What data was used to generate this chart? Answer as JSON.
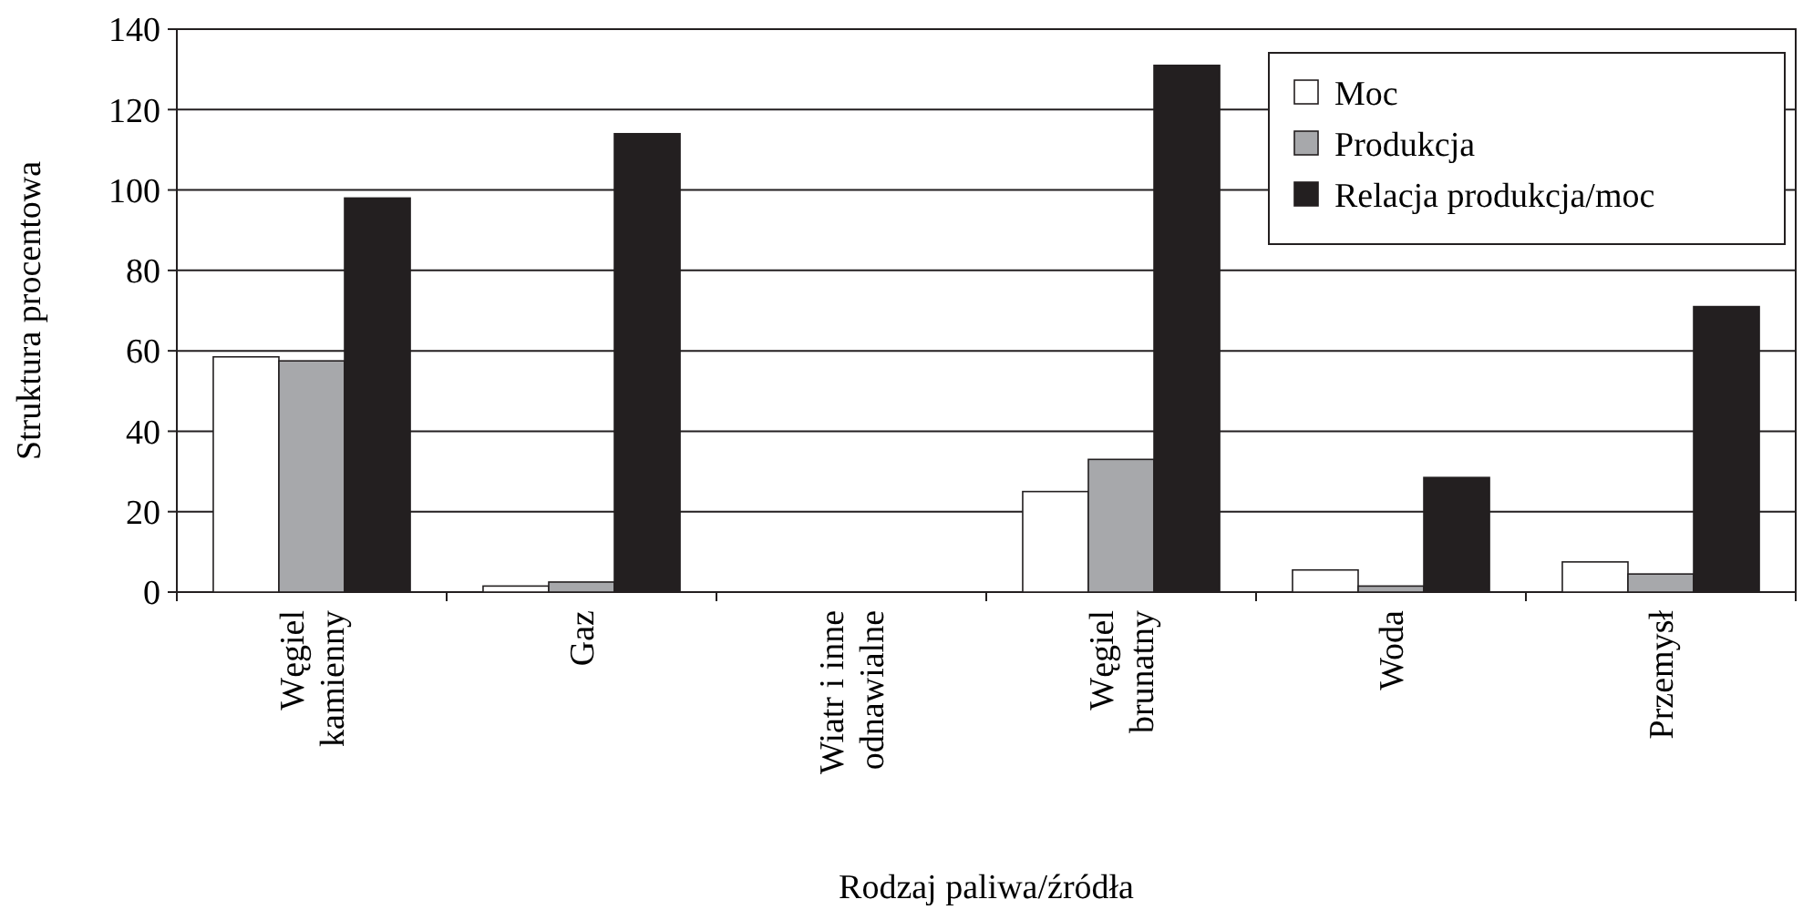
{
  "chart_data": {
    "type": "bar",
    "xlabel": "Rodzaj paliwa/źródła",
    "ylabel": "Struktura procentowa",
    "categories": [
      "Węgiel\nkamienny",
      "Gaz",
      "Wiatr i inne\nodnawialne",
      "Węgiel\nbrunatny",
      "Woda",
      "Przemysł"
    ],
    "series": [
      {
        "name": "Moc",
        "color": "#ffffff",
        "values": [
          58.5,
          1.5,
          0,
          25,
          5.5,
          7.5
        ]
      },
      {
        "name": "Produkcja",
        "color": "#a7a8ab",
        "values": [
          57.5,
          2.5,
          0,
          33,
          1.5,
          4.5
        ]
      },
      {
        "name": "Relacja produkcja/moc",
        "color": "#231f20",
        "values": [
          98,
          114,
          0,
          131,
          28.5,
          71
        ]
      }
    ],
    "ylim": [
      0,
      140
    ],
    "yticks": [
      0,
      20,
      40,
      60,
      80,
      100,
      120,
      140
    ],
    "grid": "y",
    "legend": "top right"
  }
}
